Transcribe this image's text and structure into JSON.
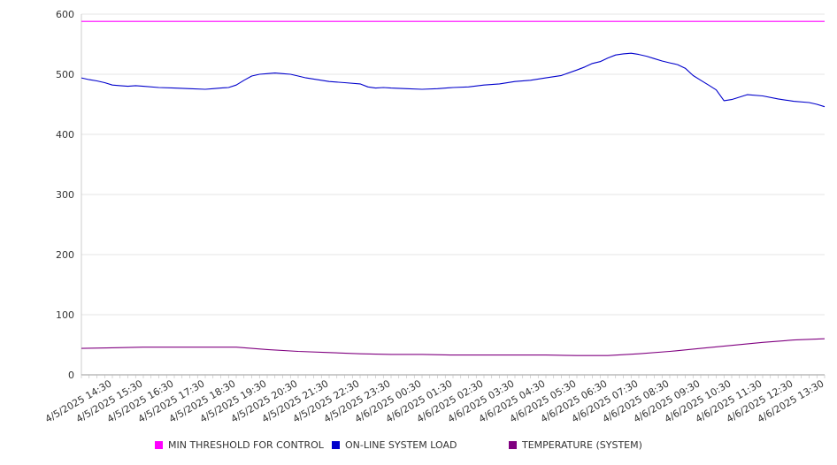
{
  "chart_data": {
    "type": "line",
    "ylim": [
      0,
      600
    ],
    "y_ticks": [
      "0",
      "100",
      "200",
      "300",
      "400",
      "500",
      "600"
    ],
    "categories": [
      "4/5/2025 14:30",
      "4/5/2025 15:30",
      "4/5/2025 16:30",
      "4/5/2025 17:30",
      "4/5/2025 18:30",
      "4/5/2025 19:30",
      "4/5/2025 20:30",
      "4/5/2025 21:30",
      "4/5/2025 22:30",
      "4/5/2025 23:30",
      "4/6/2025 00:30",
      "4/6/2025 01:30",
      "4/6/2025 02:30",
      "4/6/2025 03:30",
      "4/6/2025 04:30",
      "4/6/2025 05:30",
      "4/6/2025 06:30",
      "4/6/2025 07:30",
      "4/6/2025 08:30",
      "4/6/2025 09:30",
      "4/6/2025 10:30",
      "4/6/2025 11:30",
      "4/6/2025 12:30",
      "4/6/2025 13:30"
    ],
    "x_end_value": 24,
    "grid": true,
    "legend_position": "bottom",
    "series": [
      {
        "name": "MIN THRESHOLD FOR CONTROL",
        "color": "#ff00ff",
        "x": [
          0,
          24
        ],
        "values": [
          588,
          588
        ]
      },
      {
        "name": "ON-LINE SYSTEM LOAD",
        "color": "#0000cc",
        "x": [
          0,
          0.25,
          0.5,
          0.75,
          1,
          1.25,
          1.5,
          1.75,
          2,
          2.5,
          3,
          3.5,
          4,
          4.25,
          4.5,
          4.75,
          5,
          5.25,
          5.5,
          5.75,
          6,
          6.25,
          6.5,
          6.75,
          7,
          7.25,
          7.5,
          7.75,
          8,
          8.5,
          9,
          9.25,
          9.5,
          9.75,
          10,
          10.5,
          11,
          11.5,
          12,
          12.5,
          13,
          13.5,
          14,
          14.5,
          15,
          15.5,
          16,
          16.25,
          16.5,
          16.75,
          17,
          17.25,
          17.5,
          17.75,
          18,
          18.25,
          18.5,
          18.75,
          19,
          19.25,
          19.5,
          19.75,
          20,
          20.25,
          20.5,
          20.75,
          21,
          21.5,
          22,
          22.5,
          23,
          23.5,
          23.75,
          24
        ],
        "values": [
          494,
          491,
          489,
          486,
          482,
          481,
          480,
          481,
          480,
          478,
          477,
          476,
          475,
          476,
          477,
          478,
          482,
          490,
          497,
          500,
          501,
          502,
          501,
          500,
          497,
          494,
          492,
          490,
          488,
          486,
          484,
          479,
          477,
          478,
          477,
          476,
          475,
          476,
          478,
          479,
          482,
          484,
          488,
          490,
          494,
          498,
          507,
          512,
          518,
          521,
          527,
          532,
          534,
          535,
          533,
          530,
          526,
          522,
          519,
          516,
          510,
          498,
          490,
          482,
          474,
          456,
          458,
          466,
          464,
          459,
          455,
          453,
          450,
          446
        ]
      },
      {
        "name": "TEMPERATURE (SYSTEM)",
        "color": "#800080",
        "x": [
          0,
          1,
          2,
          3,
          4,
          5,
          6,
          7,
          8,
          9,
          10,
          11,
          12,
          13,
          14,
          15,
          16,
          17,
          18,
          19,
          20,
          21,
          22,
          23,
          24
        ],
        "values": [
          44,
          45,
          46,
          46,
          46,
          46,
          42,
          39,
          37,
          35,
          34,
          34,
          33,
          33,
          33,
          33,
          32,
          32,
          35,
          39,
          44,
          49,
          54,
          58,
          60
        ]
      }
    ]
  }
}
